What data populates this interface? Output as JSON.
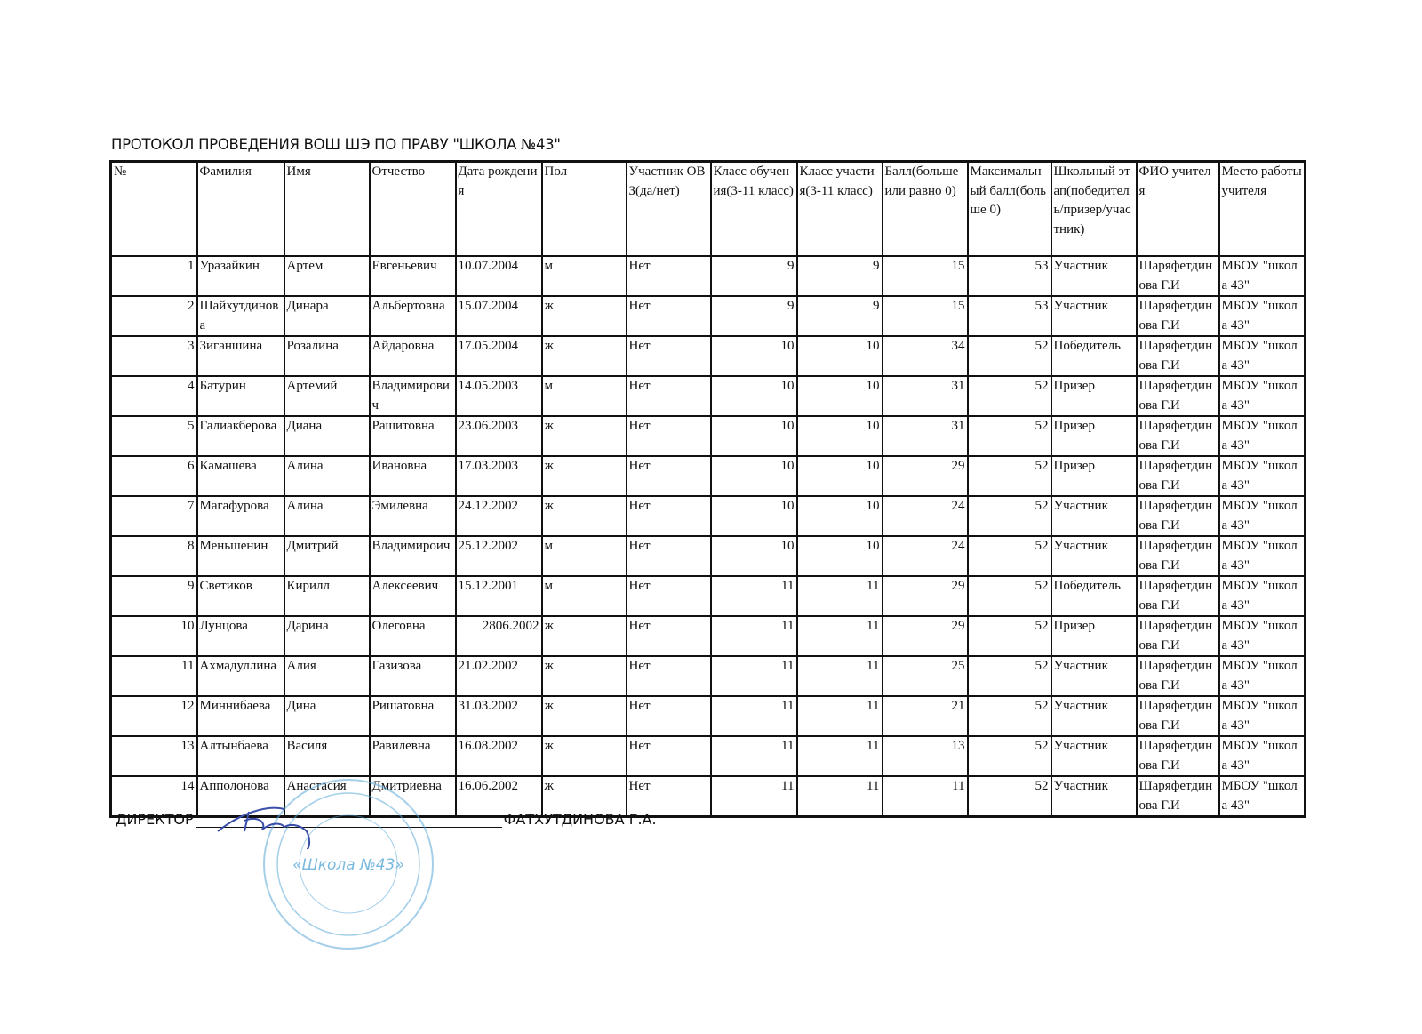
{
  "title": "ПРОТОКОЛ ПРОВЕДЕНИЯ ВОШ ШЭ ПО ПРАВУ \"ШКОЛА №43\"",
  "columns": [
    "№",
    "Фамилия",
    "Имя",
    "Отчество",
    "Дата рождения",
    "Пол",
    "Участник ОВЗ(да/нет)",
    "Класс обучения(3-11 класс)",
    "Класс участия(3-11 класс)",
    "Балл(больше или равно 0)",
    "Максимальный балл(больше 0)",
    "Школьный этап(победитель/призер/участник)",
    "ФИО учителя",
    "Место работы учителя"
  ],
  "rows": [
    [
      "1",
      "Уразайкин",
      "Артем",
      "Евгеньевич",
      "10.07.2004",
      "м",
      "Нет",
      "9",
      "9",
      "15",
      "53",
      "Участник",
      "Шаряфетдинова Г.И",
      "МБОУ \"школа 43\""
    ],
    [
      "2",
      "Шайхутдинова",
      "Динара",
      "Альбертовна",
      "15.07.2004",
      "ж",
      "Нет",
      "9",
      "9",
      "15",
      "53",
      "Участник",
      "Шаряфетдинова Г.И",
      "МБОУ \"школа 43\""
    ],
    [
      "3",
      "Зиганшина",
      "Розалина",
      "Айдаровна",
      "17.05.2004",
      "ж",
      "Нет",
      "10",
      "10",
      "34",
      "52",
      "Победитель",
      "Шаряфетдинова Г.И",
      "МБОУ \"школа 43\""
    ],
    [
      "4",
      "Батурин",
      "Артемий",
      "Владимирович",
      "14.05.2003",
      "м",
      "Нет",
      "10",
      "10",
      "31",
      "52",
      "Призер",
      "Шаряфетдинова Г.И",
      "МБОУ \"школа 43\""
    ],
    [
      "5",
      "Галиакберова",
      "Диана",
      "Рашитовна",
      "23.06.2003",
      "ж",
      "Нет",
      "10",
      "10",
      "31",
      "52",
      "Призер",
      "Шаряфетдинова Г.И",
      "МБОУ \"школа 43\""
    ],
    [
      "6",
      "Камашева",
      "Алина",
      "Ивановна",
      "17.03.2003",
      "ж",
      "Нет",
      "10",
      "10",
      "29",
      "52",
      "Призер",
      "Шаряфетдинова Г.И",
      "МБОУ \"школа 43\""
    ],
    [
      "7",
      "Магафурова",
      "Алина",
      "Эмилевна",
      "24.12.2002",
      "ж",
      "Нет",
      "10",
      "10",
      "24",
      "52",
      "Участник",
      "Шаряфетдинова Г.И",
      "МБОУ \"школа 43\""
    ],
    [
      "8",
      "Меньшенин",
      "Дмитрий",
      "Владимироич",
      "25.12.2002",
      "м",
      "Нет",
      "10",
      "10",
      "24",
      "52",
      "Участник",
      "Шаряфетдинова Г.И",
      "МБОУ \"школа 43\""
    ],
    [
      "9",
      "Светиков",
      "Кирилл",
      "Алексеевич",
      "15.12.2001",
      "м",
      "Нет",
      "11",
      "11",
      "29",
      "52",
      "Победитель",
      "Шаряфетдинова Г.И",
      "МБОУ \"школа 43\""
    ],
    [
      "10",
      "Лунцова",
      "Дарина",
      "Олеговна",
      "2806.2002",
      "ж",
      "Нет",
      "11",
      "11",
      "29",
      "52",
      "Призер",
      "Шаряфетдинова Г.И",
      "МБОУ \"школа 43\""
    ],
    [
      "11",
      "Ахмадуллина",
      "Алия",
      "Газизова",
      "21.02.2002",
      "ж",
      "Нет",
      "11",
      "11",
      "25",
      "52",
      "Участник",
      "Шаряфетдинова Г.И",
      "МБОУ \"школа 43\""
    ],
    [
      "12",
      "Миннибаева",
      "Дина",
      "Ришатовна",
      "31.03.2002",
      "ж",
      "Нет",
      "11",
      "11",
      "21",
      "52",
      "Участник",
      "Шаряфетдинова Г.И",
      "МБОУ \"школа 43\""
    ],
    [
      "13",
      "Алтынбаева",
      "Василя",
      "Равилевна",
      "16.08.2002",
      "ж",
      "Нет",
      "11",
      "11",
      "13",
      "52",
      "Участник",
      "Шаряфетдинова Г.И",
      "МБОУ \"школа 43\""
    ],
    [
      "14",
      "Апполонова",
      "Анастасия",
      "Дмитриевна",
      "16.06.2002",
      "ж",
      "Нет",
      "11",
      "11",
      "11",
      "52",
      "Участник",
      "Шаряфетдинова Г.И",
      "МБОУ \"школа 43\""
    ]
  ],
  "numeric_columns": [
    0,
    4,
    7,
    8,
    9,
    10
  ],
  "footer": {
    "role": "ДИРЕКТОР",
    "name": "ФАТХУТДИНОВА Г.А."
  },
  "stamp": {
    "text": "«Школа №43»",
    "color": "#5aa8d8"
  },
  "signature_color": "#3a4fa8"
}
